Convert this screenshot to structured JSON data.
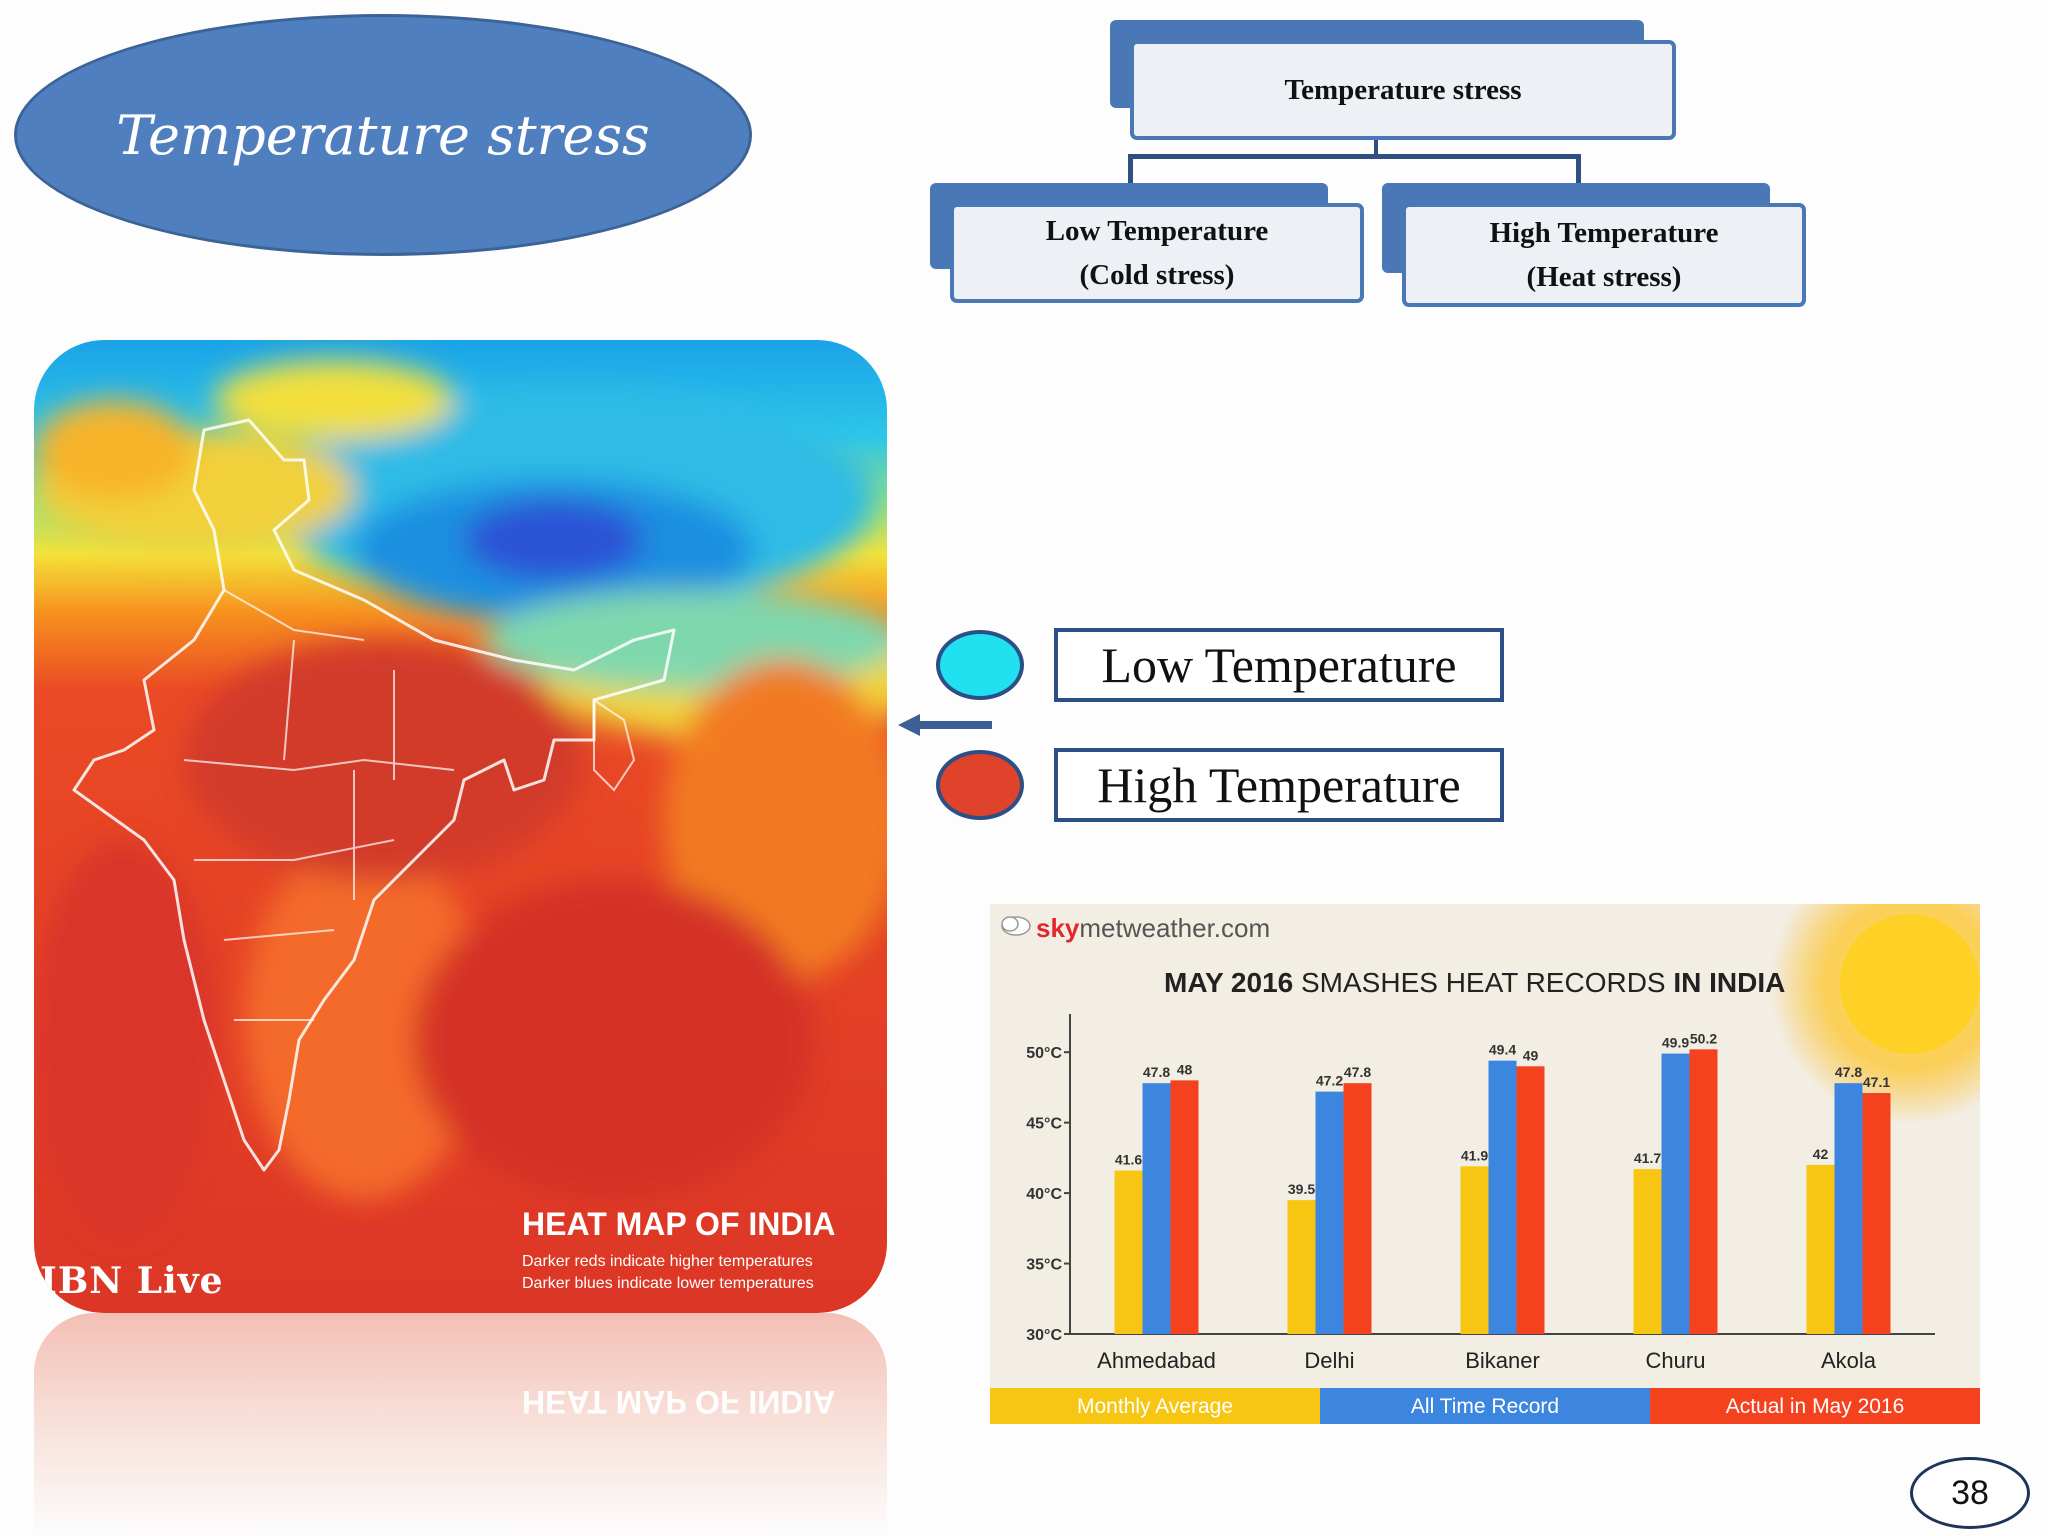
{
  "slide": {
    "title": "Temperature stress",
    "page_number": "38"
  },
  "hierarchy": {
    "root": "Temperature stress",
    "left_line1": "Low Temperature",
    "left_line2": "(Cold stress)",
    "right_line1": "High Temperature",
    "right_line2": "(Heat stress)"
  },
  "heatmap": {
    "title": "HEAT MAP OF INDIA",
    "caption1": "Darker reds indicate higher temperatures",
    "caption2": "Darker blues indicate lower temperatures",
    "brand": "IBN Live",
    "reflection_title": "HEAT MAP OF INDIA"
  },
  "legend": {
    "low_label": "Low Temperature",
    "high_label": "High Temperature",
    "low_color": "#21e0f0",
    "high_color": "#e0432c"
  },
  "chart_data": {
    "type": "bar",
    "source": "skymetweather.com",
    "source_brand": "sky",
    "source_rest": "metweather.com",
    "title_bold1": "MAY 2016",
    "title_mid": " SMASHES HEAT RECORDS ",
    "title_bold2": "IN INDIA",
    "categories": [
      "Ahmedabad",
      "Delhi",
      "Bikaner",
      "Churu",
      "Akola"
    ],
    "ylim": [
      30,
      52
    ],
    "yticks": [
      30,
      35,
      40,
      45,
      50
    ],
    "ytick_labels": [
      "30°C",
      "35°C",
      "40°C",
      "45°C",
      "50°C"
    ],
    "series": [
      {
        "name": "Monthly Average",
        "color": "#f7c613",
        "values": [
          41.6,
          39.5,
          41.9,
          41.7,
          42
        ]
      },
      {
        "name": "All Time Record",
        "color": "#3c86e0",
        "values": [
          47.8,
          47.2,
          49.4,
          49.9,
          47.8
        ]
      },
      {
        "name": "Actual in May 2016",
        "color": "#f5421e",
        "values": [
          48,
          47.8,
          49,
          50.2,
          47.1
        ]
      }
    ],
    "value_labels": [
      [
        "41.6",
        "39.5",
        "41.9",
        "41.7",
        "42"
      ],
      [
        "47.8",
        "47.2",
        "49.4",
        "49.9",
        "47.8"
      ],
      [
        "48",
        "47.8",
        "49",
        "50.2",
        "47.1"
      ]
    ],
    "legend_placement": "bottom"
  }
}
